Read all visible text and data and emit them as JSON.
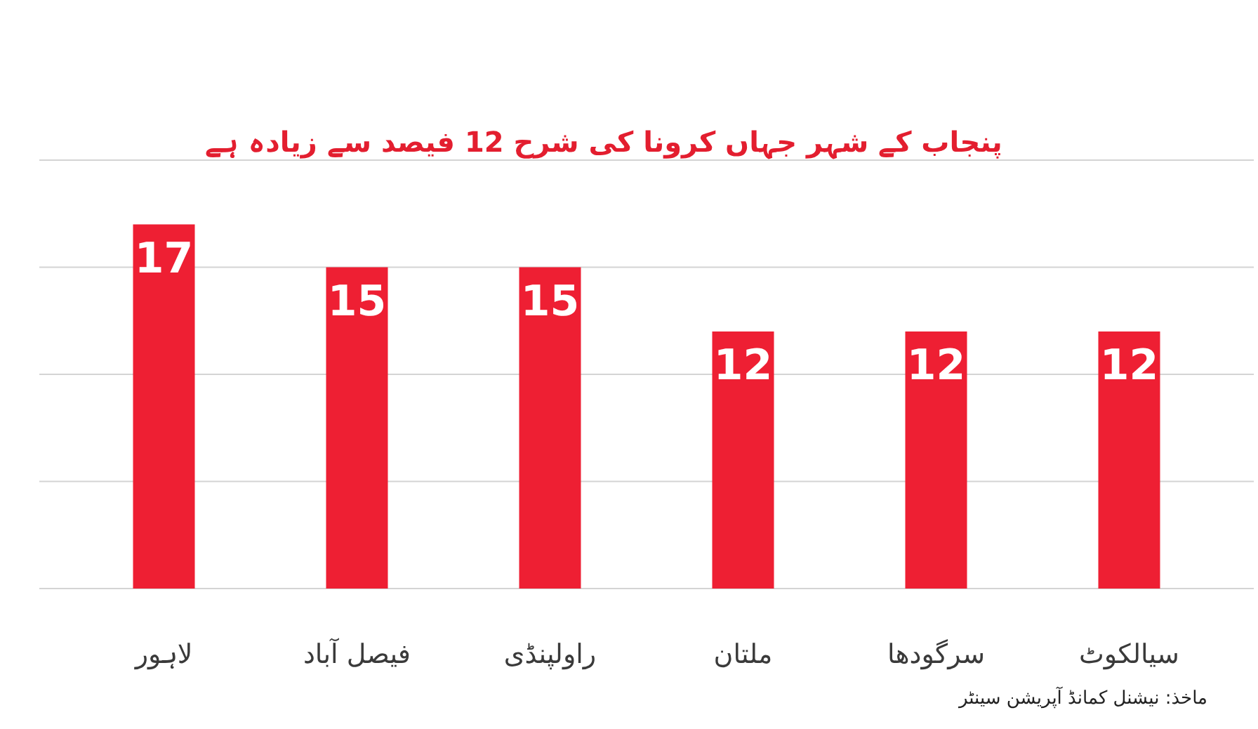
{
  "chart_data": {
    "type": "bar",
    "title": "پنجاب کے شہر جہاں کرونا کی شرح 12 فیصد سے زیادہ ہے",
    "categories": [
      "لاہور",
      "فیصل آباد",
      "راولپنڈی",
      "ملتان",
      "سرگودھا",
      "سیالکوٹ"
    ],
    "values": [
      17,
      15,
      15,
      12,
      12,
      12
    ],
    "color": "#ee1f33",
    "ylim": [
      0,
      20
    ],
    "yticks": [
      {
        "value": 0,
        "label": null
      },
      {
        "value": 5,
        "label": null
      },
      {
        "value": 10,
        "label": null
      },
      {
        "value": 15,
        "label": null
      },
      {
        "value": 20,
        "label": null
      }
    ],
    "grid": "y",
    "tick_labels": "x",
    "data_labels": true,
    "annotations": [
      "ماخذ: نیشنل کمانڈ آپریشن سینٹر"
    ]
  }
}
